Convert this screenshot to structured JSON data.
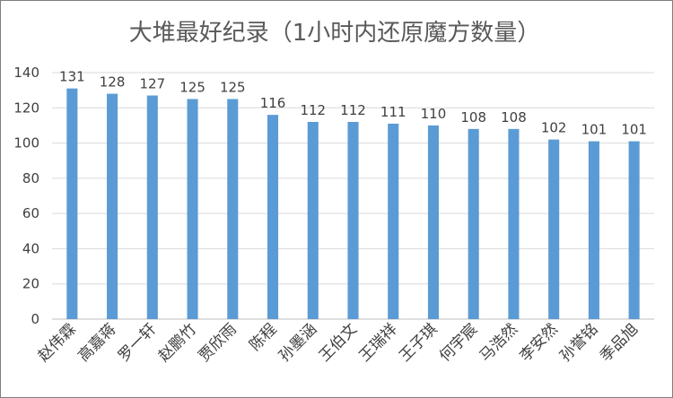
{
  "chart_data": {
    "type": "bar",
    "title": "大堆最好纪录（1小时内还原魔方数量）",
    "xlabel": "",
    "ylabel": "",
    "ylim": [
      0,
      140
    ],
    "yticks": [
      0,
      20,
      40,
      60,
      80,
      100,
      120,
      140
    ],
    "grid": true,
    "legend": "none",
    "bar_color": "#5b9bd5",
    "grid_color": "#d9d9d9",
    "categories": [
      "赵伟霖",
      "高嘉蒋",
      "罗一轩",
      "赵鹏竹",
      "贾欣雨",
      "陈程",
      "孙墨涵",
      "王伯文",
      "王瑞祥",
      "王子琪",
      "何宇宸",
      "马浩然",
      "李安然",
      "孙誉铭",
      "季品旭"
    ],
    "values": [
      131,
      128,
      127,
      125,
      125,
      116,
      112,
      112,
      111,
      110,
      108,
      108,
      102,
      101,
      101
    ]
  }
}
